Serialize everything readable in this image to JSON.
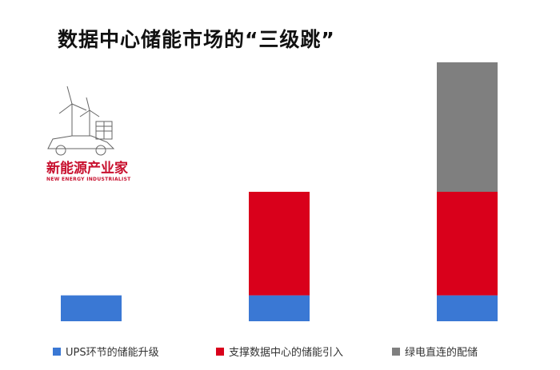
{
  "chart_data": {
    "type": "bar",
    "stacked": true,
    "title": "数据中心储能市场的“三级跳”",
    "categories": [
      "",
      "",
      ""
    ],
    "series": [
      {
        "name": "UPS环节的储能升级",
        "color": "#3a78d4",
        "values": [
          1,
          1,
          1
        ]
      },
      {
        "name": "支撑数据中心的储能引入",
        "color": "#d9001b",
        "values": [
          0,
          4,
          4
        ]
      },
      {
        "name": "绿电直连的配储",
        "color": "#7f7f7f",
        "values": [
          0,
          0,
          5
        ]
      }
    ],
    "ylim": [
      0,
      10
    ],
    "grid": false,
    "legend_position": "bottom"
  },
  "watermark": {
    "name_cn": "新能源产业家",
    "name_en": "NEW ENERGY INDUSTRIALIST"
  }
}
